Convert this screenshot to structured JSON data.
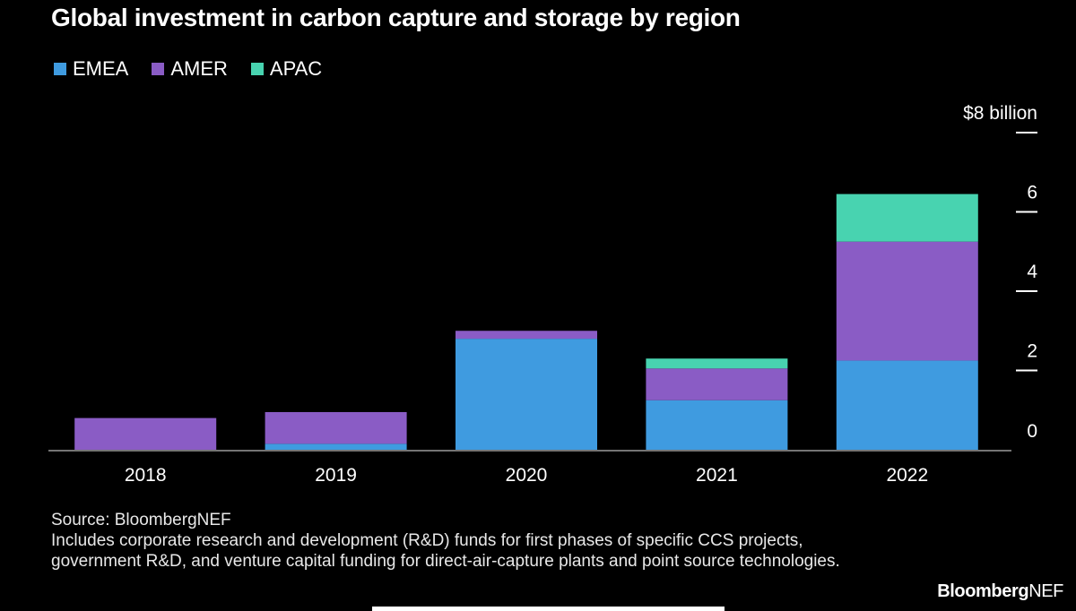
{
  "header": {
    "title": "Global investment in carbon capture and storage by region"
  },
  "chart_data": {
    "type": "bar",
    "stacked": true,
    "categories": [
      "2018",
      "2019",
      "2020",
      "2021",
      "2022"
    ],
    "series": [
      {
        "name": "EMEA",
        "color": "#3f9be0",
        "values": [
          0.0,
          0.15,
          2.8,
          1.25,
          2.25
        ]
      },
      {
        "name": "AMER",
        "color": "#8a5cc5",
        "values": [
          0.8,
          0.8,
          0.2,
          0.8,
          3.0
        ]
      },
      {
        "name": "APAC",
        "color": "#48d3b0",
        "values": [
          0.0,
          0.0,
          0.0,
          0.25,
          1.2
        ]
      }
    ],
    "ylim": [
      0,
      8
    ],
    "y_ticks": [
      0,
      2,
      4,
      6,
      8
    ],
    "y_tick_labels": [
      "0",
      "2",
      "4",
      "6",
      "$8 billion"
    ],
    "yaxis_position": "right",
    "legend_position": "top-left",
    "grid": false
  },
  "notes": {
    "source": "Source: BloombergNEF",
    "description": "Includes corporate research and development (R&D) funds for first phases of specific CCS projects, government R&D, and venture capital funding for direct-air-capture plants and point source technologies."
  },
  "brand": {
    "bold": "Bloomberg",
    "light": "NEF"
  }
}
